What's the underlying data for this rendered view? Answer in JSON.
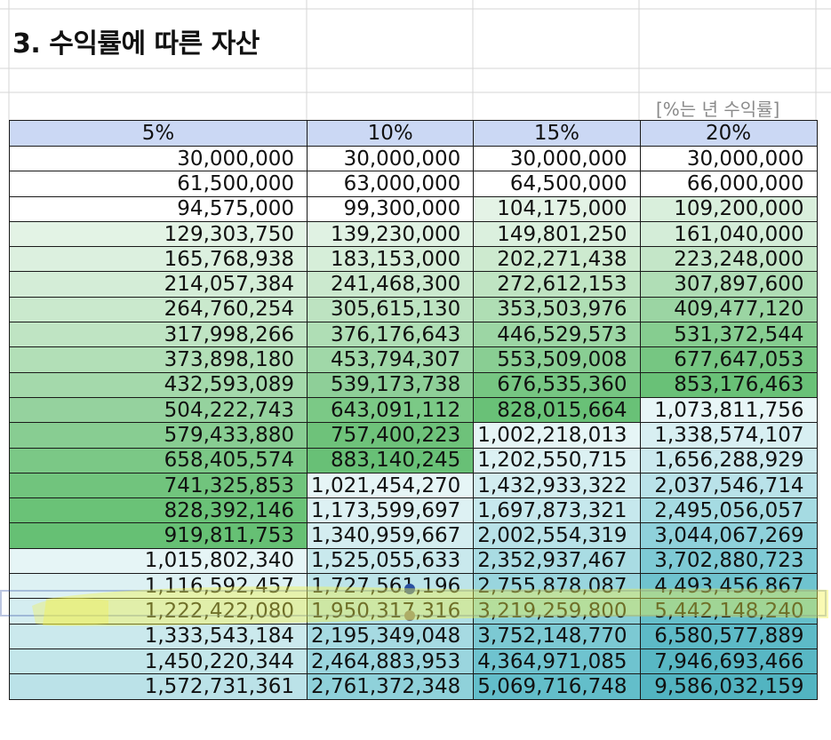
{
  "sheet": {
    "title": "3. 수익률에 따른 자산",
    "note": "[%는 년 수익률]",
    "headers": [
      "5%",
      "10%",
      "15%",
      "20%"
    ],
    "rows": [
      [
        "30,000,000",
        "30,000,000",
        "30,000,000",
        "30,000,000"
      ],
      [
        "61,500,000",
        "63,000,000",
        "64,500,000",
        "66,000,000"
      ],
      [
        "94,575,000",
        "99,300,000",
        "104,175,000",
        "109,200,000"
      ],
      [
        "129,303,750",
        "139,230,000",
        "149,801,250",
        "161,040,000"
      ],
      [
        "165,768,938",
        "183,153,000",
        "202,271,438",
        "223,248,000"
      ],
      [
        "214,057,384",
        "241,468,300",
        "272,612,153",
        "307,897,600"
      ],
      [
        "264,760,254",
        "305,615,130",
        "353,503,976",
        "409,477,120"
      ],
      [
        "317,998,266",
        "376,176,643",
        "446,529,573",
        "531,372,544"
      ],
      [
        "373,898,180",
        "453,794,307",
        "553,509,008",
        "677,647,053"
      ],
      [
        "432,593,089",
        "539,173,738",
        "676,535,360",
        "853,176,463"
      ],
      [
        "504,222,743",
        "643,091,112",
        "828,015,664",
        "1,073,811,756"
      ],
      [
        "579,433,880",
        "757,400,223",
        "1,002,218,013",
        "1,338,574,107"
      ],
      [
        "658,405,574",
        "883,140,245",
        "1,202,550,715",
        "1,656,288,929"
      ],
      [
        "741,325,853",
        "1,021,454,270",
        "1,432,933,322",
        "2,037,546,714"
      ],
      [
        "828,392,146",
        "1,173,599,697",
        "1,697,873,321",
        "2,495,056,057"
      ],
      [
        "919,811,753",
        "1,340,959,667",
        "2,002,554,319",
        "3,044,067,269"
      ],
      [
        "1,015,802,340",
        "1,525,055,633",
        "2,352,937,467",
        "3,702,880,723"
      ],
      [
        "1,116,592,457",
        "1,727,561,196",
        "2,755,878,087",
        "4,493,456,867"
      ],
      [
        "1,222,422,080",
        "1,950,317,316",
        "3,219,259,800",
        "5,442,148,240"
      ],
      [
        "1,333,543,184",
        "2,195,349,048",
        "3,752,148,770",
        "6,580,577,889"
      ],
      [
        "1,450,220,344",
        "2,464,883,953",
        "4,364,971,085",
        "7,946,693,466"
      ],
      [
        "1,572,731,361",
        "2,761,372,348",
        "5,069,716,748",
        "9,586,032,159"
      ]
    ],
    "cell_colors": [
      [
        "#ffffff",
        "#ffffff",
        "#ffffff",
        "#ffffff"
      ],
      [
        "#ffffff",
        "#ffffff",
        "#ffffff",
        "#ffffff"
      ],
      [
        "#ffffff",
        "#ffffff",
        "#e4f3e6",
        "#d9efdc"
      ],
      [
        "#e3f3e5",
        "#e0f2e3",
        "#dbf0de",
        "#d4edd8"
      ],
      [
        "#dcf0df",
        "#d6eed9",
        "#cdeacf",
        "#c4e6c8"
      ],
      [
        "#d4edd7",
        "#cbe9ce",
        "#bfe4c2",
        "#b0deb6"
      ],
      [
        "#cae9cd",
        "#bde3c1",
        "#afdeb4",
        "#9bd5a3"
      ],
      [
        "#bfe4c3",
        "#afdeb5",
        "#9cd6a4",
        "#86cd90"
      ],
      [
        "#b2dfb7",
        "#a0d8a8",
        "#89ce93",
        "#76c682"
      ],
      [
        "#a4d9ab",
        "#8ecf98",
        "#76c682",
        "#69c177"
      ],
      [
        "#95d29e",
        "#7bc986",
        "#69c177",
        "#e8f6f7"
      ],
      [
        "#88cd92",
        "#6ec27a",
        "#e6f5f6",
        "#d8eff2"
      ],
      [
        "#7bc886",
        "#68c076",
        "#dcf1f3",
        "#cbe9ee"
      ],
      [
        "#71c47d",
        "#e6f5f6",
        "#d2edf0",
        "#b9e2e9"
      ],
      [
        "#6ac277",
        "#ddf1f3",
        "#c6e8ed",
        "#a5dbe2"
      ],
      [
        "#66c074",
        "#d4edf0",
        "#b8e2e8",
        "#8fd1db"
      ],
      [
        "#e6f5f6",
        "#c9e9ed",
        "#a9dce3",
        "#7ecad5"
      ],
      [
        "#ddf1f3",
        "#bde4e9",
        "#99d5de",
        "#6fc3cf"
      ],
      [
        "#d4edf0",
        "#b1dfe6",
        "#89cfd8",
        "#65bfcb"
      ],
      [
        "#cbe9ed",
        "#a6dae2",
        "#7cc9d3",
        "#5dbac7"
      ],
      [
        "#c3e6ea",
        "#9ad5de",
        "#6fc3cf",
        "#58b7c4"
      ],
      [
        "#bbe2e8",
        "#8fd1da",
        "#63beca",
        "#52b4c1"
      ]
    ]
  }
}
